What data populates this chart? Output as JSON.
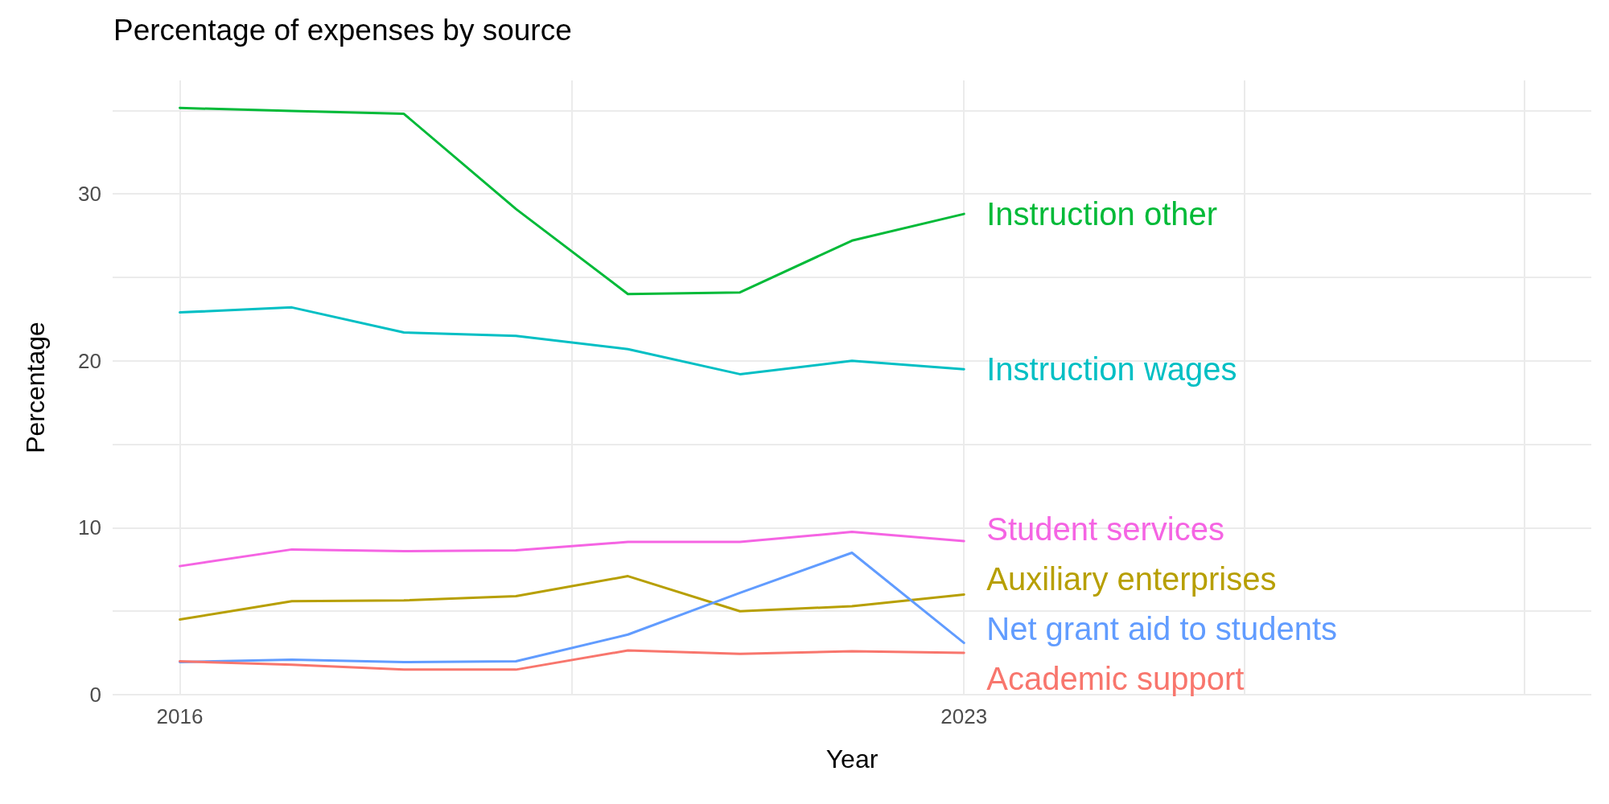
{
  "chart_data": {
    "type": "line",
    "title": "Percentage of expenses by source",
    "xlabel": "Year",
    "ylabel": "Percentage",
    "x": [
      2016,
      2017,
      2018,
      2019,
      2020,
      2021,
      2022,
      2023
    ],
    "series": [
      {
        "name": "Instruction other",
        "color": "#00ba38",
        "values": [
          35.15,
          34.97,
          34.8,
          29.1,
          24.0,
          24.1,
          27.2,
          28.8
        ]
      },
      {
        "name": "Instruction wages",
        "color": "#00bfc4",
        "values": [
          22.9,
          23.2,
          21.7,
          21.5,
          20.7,
          19.2,
          20.0,
          19.5
        ]
      },
      {
        "name": "Student services",
        "color": "#f564e3",
        "values": [
          7.7,
          8.7,
          8.6,
          8.65,
          9.15,
          9.15,
          9.75,
          9.2
        ]
      },
      {
        "name": "Auxiliary enterprises",
        "color": "#b79f00",
        "values": [
          4.5,
          5.6,
          5.65,
          5.9,
          7.1,
          5.0,
          5.3,
          6.0
        ]
      },
      {
        "name": "Net grant aid to students",
        "color": "#619cff",
        "values": [
          1.95,
          2.1,
          1.95,
          2.0,
          3.6,
          6.1,
          8.5,
          3.1
        ]
      },
      {
        "name": "Academic support",
        "color": "#f8766d",
        "values": [
          2.0,
          1.8,
          1.5,
          1.5,
          2.65,
          2.45,
          2.6,
          2.5
        ]
      }
    ],
    "xlim": [
      2015.4,
      2028.6
    ],
    "xticks": [
      2016,
      {
        "value": 2019.5,
        "label": null
      },
      2023,
      {
        "value": 2025.5,
        "label": null
      },
      {
        "value": 2028,
        "label": null
      }
    ],
    "ylim": [
      0,
      36.8
    ],
    "yticks": [
      0,
      {
        "value": 5,
        "label": null
      },
      10,
      {
        "value": 15,
        "label": null
      },
      20,
      {
        "value": 25,
        "label": null
      },
      30,
      {
        "value": 35,
        "label": null
      }
    ],
    "grid": true,
    "marker": "none",
    "line_style": "solid"
  }
}
